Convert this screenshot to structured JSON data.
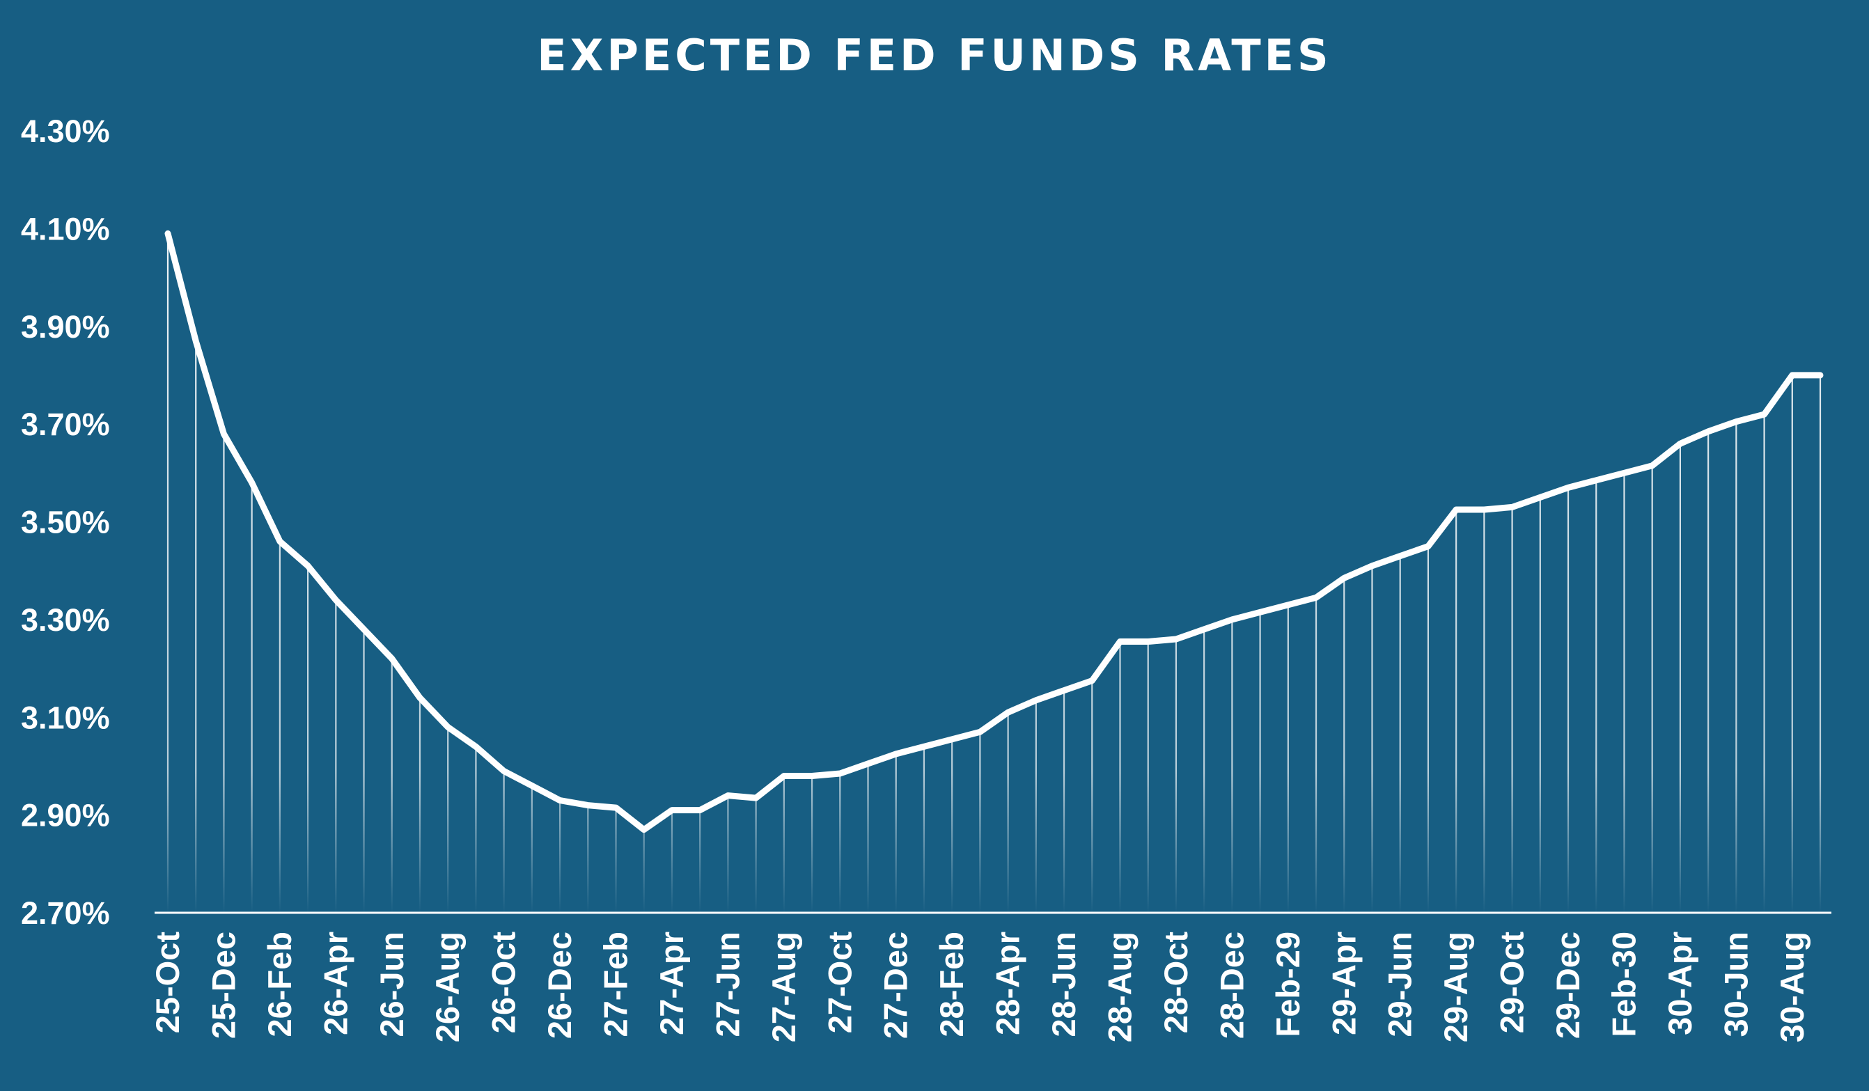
{
  "chart_data": {
    "type": "line",
    "title": "EXPECTED FED FUNDS RATES",
    "xlabel": "",
    "ylabel": "",
    "ylim": [
      2.7,
      4.3
    ],
    "y_ticks": [
      "2.70%",
      "2.90%",
      "3.10%",
      "3.30%",
      "3.50%",
      "3.70%",
      "3.90%",
      "4.10%",
      "4.30%"
    ],
    "y_tick_values": [
      2.7,
      2.9,
      3.1,
      3.3,
      3.5,
      3.7,
      3.9,
      4.1,
      4.3
    ],
    "x_tick_labels": [
      "25-Oct",
      "25-Dec",
      "26-Feb",
      "26-Apr",
      "26-Jun",
      "26-Aug",
      "26-Oct",
      "26-Dec",
      "27-Feb",
      "27-Apr",
      "27-Jun",
      "27-Aug",
      "27-Oct",
      "27-Dec",
      "28-Feb",
      "28-Apr",
      "28-Jun",
      "28-Aug",
      "28-Oct",
      "28-Dec",
      "Feb-29",
      "29-Apr",
      "29-Jun",
      "29-Aug",
      "29-Oct",
      "29-Dec",
      "Feb-30",
      "30-Apr",
      "30-Jun",
      "30-Aug"
    ],
    "series": [
      {
        "name": "Expected Fed Funds Rate",
        "values": [
          4.09,
          3.87,
          3.68,
          3.58,
          3.46,
          3.41,
          3.34,
          3.28,
          3.22,
          3.14,
          3.08,
          3.04,
          2.99,
          2.96,
          2.93,
          2.92,
          2.915,
          2.87,
          2.91,
          2.91,
          2.94,
          2.935,
          2.98,
          2.98,
          2.985,
          3.005,
          3.025,
          3.04,
          3.055,
          3.07,
          3.11,
          3.135,
          3.155,
          3.175,
          3.255,
          3.255,
          3.26,
          3.28,
          3.3,
          3.315,
          3.33,
          3.345,
          3.385,
          3.41,
          3.43,
          3.45,
          3.525,
          3.525,
          3.53,
          3.55,
          3.57,
          3.585,
          3.6,
          3.615,
          3.66,
          3.685,
          3.705,
          3.72,
          3.8,
          3.8
        ]
      }
    ],
    "grid": false,
    "drop_lines": true,
    "legend": "none"
  },
  "colors": {
    "background": "#175e83",
    "line": "#ffffff",
    "text": "#ffffff"
  }
}
